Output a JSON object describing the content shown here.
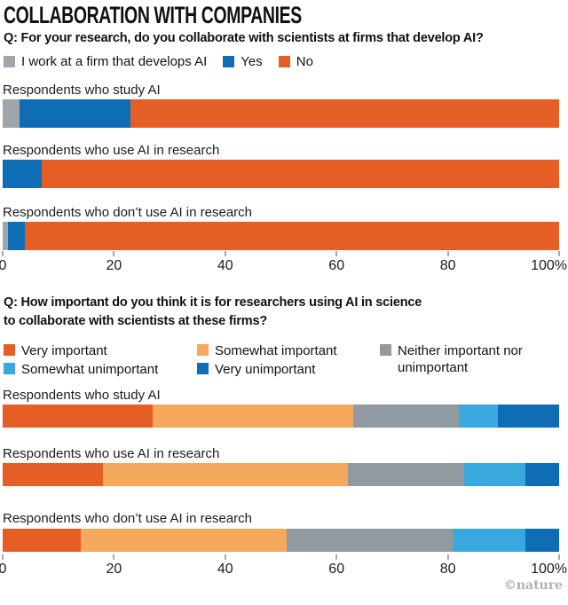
{
  "page": {
    "title": "COLLABORATION WITH COMPANIES",
    "credit": "©nature"
  },
  "chart_data": [
    {
      "type": "bar",
      "stacked": true,
      "orientation": "horizontal",
      "title": "Q: For your research, do you collaborate with scientists at firms that develop AI?",
      "categories": [
        "Respondents who study AI",
        "Respondents who use AI in research",
        "Respondents who don’t use AI in research"
      ],
      "series": [
        {
          "name": "I work at a firm that develops AI",
          "color": "#9EA5AB",
          "values": [
            3,
            0,
            1
          ]
        },
        {
          "name": "Yes",
          "color": "#0E6DB5",
          "values": [
            20,
            7,
            3
          ]
        },
        {
          "name": "No",
          "color": "#E55E25",
          "values": [
            77,
            93,
            96
          ]
        }
      ],
      "xlim": [
        0,
        100
      ],
      "ticks": [
        "0",
        "20",
        "40",
        "60",
        "80",
        "100%"
      ],
      "legend_position": "top",
      "unit": "%"
    },
    {
      "type": "bar",
      "stacked": true,
      "orientation": "horizontal",
      "title_lines": [
        "Q: How important do you think it is for researchers using AI in science",
        "to collaborate with scientists at these firms?"
      ],
      "categories": [
        "Respondents who study AI",
        "Respondents who use AI in research",
        "Respondents who don’t use AI in research"
      ],
      "series": [
        {
          "name": "Very important",
          "color": "#E55E25",
          "values": [
            27,
            18,
            14
          ]
        },
        {
          "name": "Somewhat important",
          "color": "#F4A95C",
          "values": [
            36,
            44,
            37
          ]
        },
        {
          "name": "Neither important nor unimportant",
          "color": "#9199A1",
          "values": [
            19,
            21,
            30
          ]
        },
        {
          "name": "Somewhat unimportant",
          "color": "#38A8DF",
          "values": [
            7,
            11,
            13
          ]
        },
        {
          "name": "Very unimportant",
          "color": "#0E6DB5",
          "values": [
            11,
            6,
            6
          ]
        }
      ],
      "xlim": [
        0,
        100
      ],
      "ticks": [
        "0",
        "20",
        "40",
        "60",
        "80",
        "100%"
      ],
      "legend_position": "top",
      "unit": "%"
    }
  ]
}
